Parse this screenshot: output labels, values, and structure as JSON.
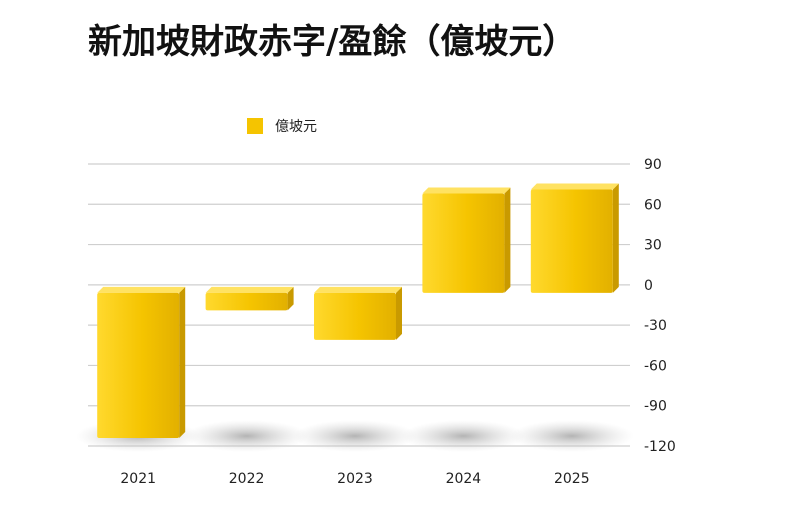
{
  "chart_data": {
    "type": "bar",
    "title": "新加坡財政赤字/盈餘（億坡元）",
    "categories": [
      "2021",
      "2022",
      "2023",
      "2024",
      "2025"
    ],
    "series": [
      {
        "name": "億坡元",
        "values": [
          -114,
          -19,
          -41,
          68,
          71
        ],
        "color": "#F5C400"
      }
    ],
    "ylim": [
      -120,
      90
    ],
    "yticks": [
      90,
      60,
      30,
      0,
      -30,
      -60,
      -90,
      -120
    ],
    "grid": true,
    "legend": "top-left"
  }
}
